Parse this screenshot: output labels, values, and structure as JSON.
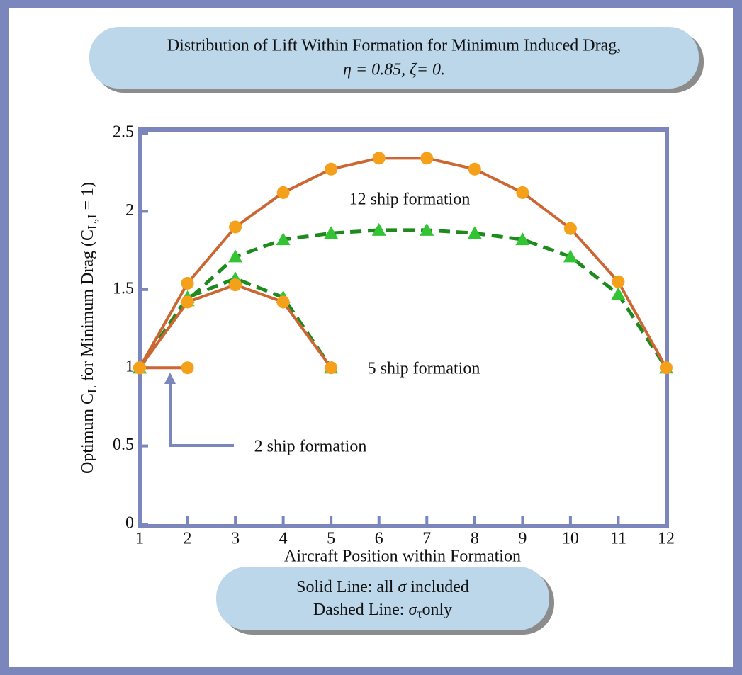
{
  "chart_data": {
    "type": "line",
    "title": [
      "Distribution of Lift Within Formation for Minimum Induced Drag,",
      "η = 0.85, ζ= 0."
    ],
    "x_label": "Aircraft Position within Formation",
    "y_label": [
      "Optimum C",
      "L",
      " for Minimum Drag (C",
      "L,I",
      " = 1)"
    ],
    "xlim": [
      1,
      12
    ],
    "xticks": [
      1,
      2,
      3,
      4,
      5,
      6,
      7,
      8,
      9,
      10,
      11,
      12
    ],
    "ylim": [
      0,
      2.5
    ],
    "yticks": [
      0,
      0.5,
      1,
      1.5,
      2,
      2.5
    ],
    "series": [
      {
        "style": "dashed",
        "marker": "triangle",
        "color": "#1e8a1e",
        "marker_color": "#33c433",
        "x": [
          1,
          2,
          3,
          4,
          5,
          6,
          7,
          8,
          9,
          10,
          11,
          12
        ],
        "values": [
          1,
          1.43,
          1.71,
          1.82,
          1.86,
          1.88,
          1.88,
          1.86,
          1.82,
          1.71,
          1.47,
          1
        ]
      },
      {
        "style": "dashed",
        "marker": "triangle",
        "color": "#1e8a1e",
        "marker_color": "#33c433",
        "x": [
          1,
          2,
          3,
          4,
          5
        ],
        "values": [
          1,
          1.45,
          1.57,
          1.45,
          1
        ]
      },
      {
        "style": "solid",
        "marker": "circle",
        "color": "#cc6633",
        "marker_color": "#f5a01a",
        "x": [
          1,
          2,
          3,
          4,
          5,
          6,
          7,
          8,
          9,
          10,
          11,
          12
        ],
        "values": [
          1,
          1.54,
          1.9,
          2.12,
          2.27,
          2.34,
          2.34,
          2.27,
          2.12,
          1.89,
          1.55,
          1
        ]
      },
      {
        "style": "solid",
        "marker": "circle",
        "color": "#cc6633",
        "marker_color": "#f5a01a",
        "x": [
          1,
          2,
          3,
          4,
          5
        ],
        "values": [
          1,
          1.42,
          1.53,
          1.42,
          1
        ]
      },
      {
        "style": "solid",
        "marker": "circle",
        "color": "#cc6633",
        "marker_color": "#f5a01a",
        "x": [
          1,
          2
        ],
        "values": [
          1,
          1
        ]
      }
    ],
    "annotations": [
      "12 ship formation",
      "5 ship formation",
      "2 ship formation"
    ],
    "legend_note": [
      [
        "Solid Line: all ",
        "σ",
        " included"
      ],
      [
        "Dashed Line: ",
        "σ",
        "τ",
        "only"
      ]
    ]
  }
}
